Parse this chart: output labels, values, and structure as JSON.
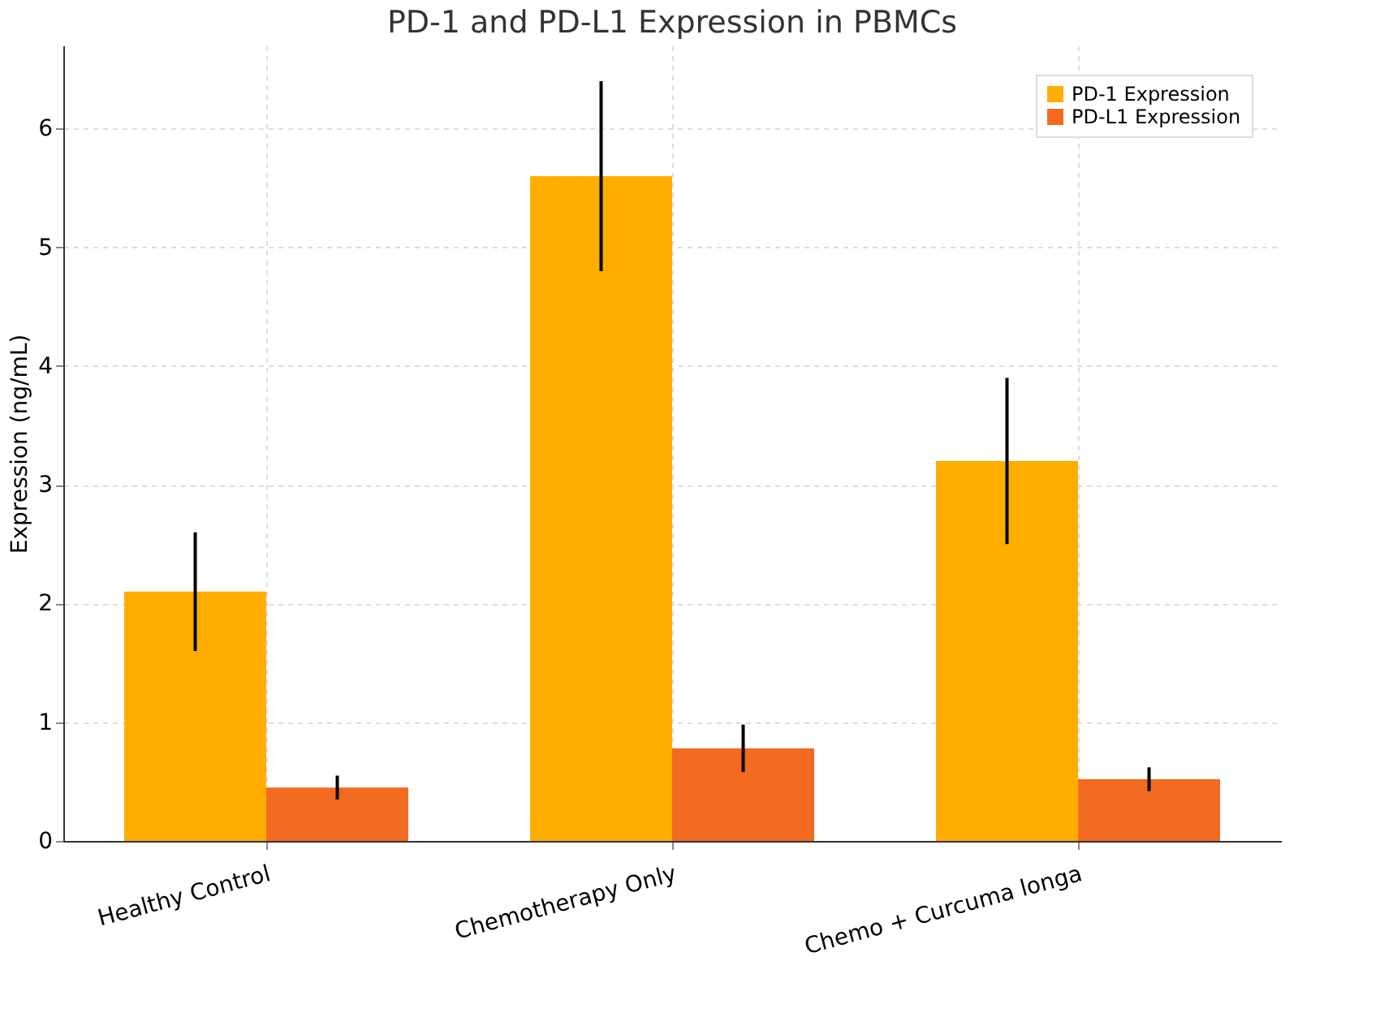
{
  "chart_data": {
    "type": "bar",
    "title": "PD-1 and PD-L1 Expression in PBMCs",
    "ylabel": "Expression (ng/mL)",
    "categories": [
      "Healthy Control",
      "Chemotherapy Only",
      "Chemo + Curcuma longa"
    ],
    "series": [
      {
        "name": "PD-1 Expression",
        "color": "#ffae00",
        "values": [
          2.1,
          5.6,
          3.2
        ],
        "errors": [
          0.5,
          0.8,
          0.7
        ]
      },
      {
        "name": "PD-L1 Expression",
        "color": "#f26b21",
        "values": [
          0.45,
          0.78,
          0.52
        ],
        "errors": [
          0.1,
          0.2,
          0.1
        ]
      }
    ],
    "ylim": [
      0,
      6.7
    ],
    "yticks": [
      0,
      1,
      2,
      3,
      4,
      5,
      6
    ],
    "grid": true,
    "legend": "top right"
  }
}
